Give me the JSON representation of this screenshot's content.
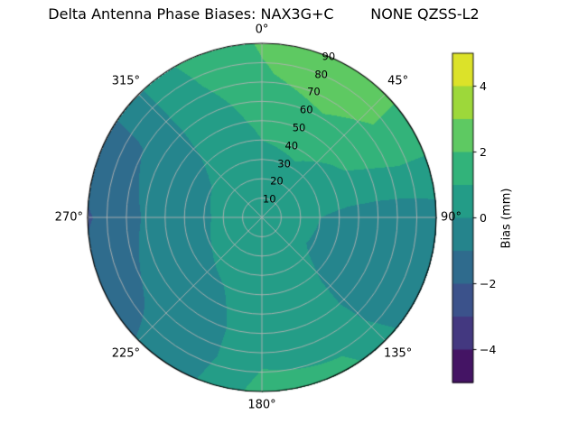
{
  "title": "Delta Antenna Phase Biases: NAX3G+C        NONE QZSS-L2",
  "chart_data": {
    "type": "polar_contour",
    "title": "Delta Antenna Phase Biases: NAX3G+C        NONE QZSS-L2",
    "angle_tick_labels": [
      "0°",
      "45°",
      "90°",
      "135°",
      "180°",
      "225°",
      "270°",
      "315°"
    ],
    "angle_tick_degrees": [
      0,
      45,
      90,
      135,
      180,
      225,
      270,
      315
    ],
    "radial_tick_values": [
      10,
      20,
      30,
      40,
      50,
      60,
      70,
      80,
      90
    ],
    "radial_max": 90,
    "radial_label_angle_deg": 22.5,
    "azimuth_grid_deg": [
      0,
      30,
      60,
      90,
      120,
      150,
      180,
      210,
      240,
      270,
      300,
      330
    ],
    "radius_grid": [
      0,
      15,
      30,
      45,
      60,
      75,
      90
    ],
    "bias_values_mm": [
      [
        0.5,
        0.6,
        0.8,
        1.1,
        1.5,
        1.9,
        2.1
      ],
      [
        0.5,
        0.6,
        0.9,
        1.3,
        1.9,
        2.6,
        2.7
      ],
      [
        0.5,
        0.5,
        0.6,
        0.9,
        1.3,
        1.7,
        1.6
      ],
      [
        0.5,
        0.3,
        0.0,
        -0.3,
        -0.5,
        -0.6,
        -0.4
      ],
      [
        0.5,
        0.3,
        -0.1,
        -0.4,
        -0.6,
        -0.7,
        -0.6
      ],
      [
        0.5,
        0.4,
        0.3,
        0.3,
        0.4,
        0.7,
        1.3
      ],
      [
        0.5,
        0.5,
        0.5,
        0.5,
        0.6,
        0.9,
        1.4
      ],
      [
        0.5,
        0.4,
        0.2,
        -0.1,
        -0.4,
        -0.6,
        -0.5
      ],
      [
        0.5,
        0.3,
        0.0,
        -0.4,
        -0.7,
        -1.1,
        -1.4
      ],
      [
        0.5,
        0.3,
        -0.1,
        -0.5,
        -0.9,
        -1.5,
        -2.1
      ],
      [
        0.5,
        0.3,
        0.0,
        -0.4,
        -0.7,
        -1.1,
        -1.3
      ],
      [
        0.5,
        0.5,
        0.4,
        0.4,
        0.5,
        0.8,
        1.0
      ]
    ],
    "contour_level_step": 1,
    "colorbar": {
      "label": "Bias (mm)",
      "tick_values": [
        -4,
        -2,
        0,
        2,
        4
      ],
      "tick_labels": [
        "−4",
        "−2",
        "0",
        "2",
        "4"
      ],
      "vmin": -5,
      "vmax": 5
    },
    "colormap": {
      "name": "viridis",
      "stops": [
        "#440154",
        "#46327e",
        "#3b528b",
        "#2c728e",
        "#21918c",
        "#28ae80",
        "#5ec962",
        "#addc30",
        "#fde725"
      ]
    },
    "grid_line_color": "#b2b2b2",
    "outline_color": "#000000",
    "background_color": "#ffffff"
  }
}
